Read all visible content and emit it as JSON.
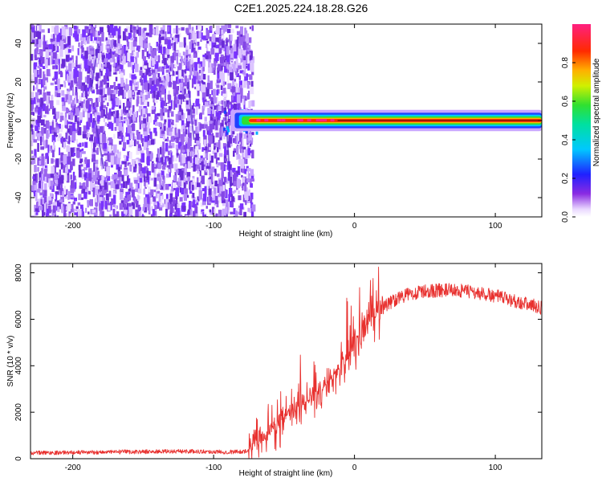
{
  "figure_title": "C2E1.2025.224.18.28.G26",
  "chart_data": [
    {
      "type": "heatmap",
      "title": "",
      "xlabel": "Height of straight line (km)",
      "ylabel": "Frequency (Hz)",
      "xlim": [
        -230,
        133
      ],
      "ylim": [
        -50,
        50
      ],
      "xticks": [
        -200,
        -100,
        0,
        100
      ],
      "yticks": [
        -40,
        -20,
        0,
        20,
        40
      ],
      "colorbar": {
        "label": "Normalized spectral amplitude",
        "range": [
          0.0,
          1.0
        ],
        "ticks": [
          0.0,
          0.2,
          0.4,
          0.6,
          0.8
        ],
        "colormap": "rainbow (white-violet-blue-cyan-green-yellow-orange-red-magenta)"
      },
      "regions": [
        {
          "x_range": [
            -230,
            -73
          ],
          "freq_range": [
            -50,
            50
          ],
          "amplitude": "low, scattered noise (~0.05-0.15)"
        },
        {
          "x_range": [
            -85,
            133
          ],
          "freq_center": 0,
          "freq_halfwidth": 3,
          "amplitude": "high (0.5-1.0), narrow line at 0 Hz"
        }
      ],
      "grid": false
    },
    {
      "type": "line",
      "title": "",
      "xlabel": "Height of straight line (km)",
      "ylabel": "SNR (10 * v/v)",
      "xlim": [
        -230,
        133
      ],
      "ylim": [
        0,
        8400
      ],
      "xticks": [
        -200,
        -100,
        0,
        100
      ],
      "yticks": [
        0,
        2000,
        4000,
        6000,
        8000
      ],
      "series": [
        {
          "color": "#e8302e",
          "x": [
            -230,
            -200,
            -150,
            -120,
            -90,
            -75,
            -68,
            -60,
            -52,
            -45,
            -38,
            -30,
            -22,
            -15,
            -8,
            0,
            10,
            20,
            30,
            40,
            50,
            60,
            70,
            80,
            90,
            100,
            110,
            120,
            133
          ],
          "y": [
            250,
            270,
            300,
            320,
            290,
            320,
            1000,
            1200,
            1600,
            2100,
            2300,
            2600,
            3100,
            3600,
            4300,
            5000,
            5900,
            6500,
            6900,
            7100,
            7200,
            7250,
            7250,
            7200,
            7100,
            7000,
            6850,
            6700,
            6500
          ]
        }
      ],
      "grid": false
    }
  ]
}
